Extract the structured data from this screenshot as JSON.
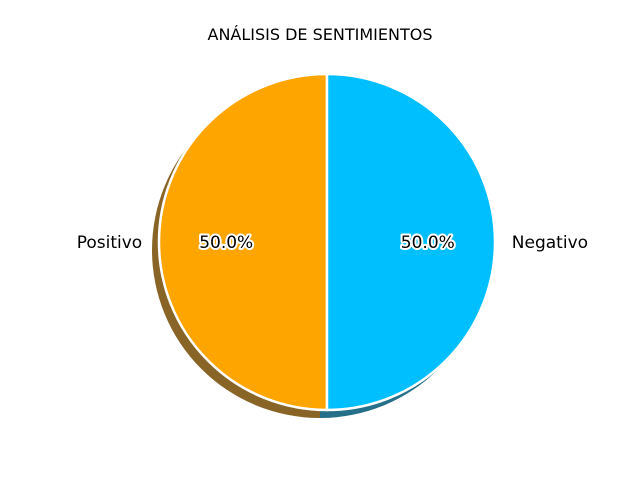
{
  "chart_data": {
    "type": "pie",
    "title": "ANÁLISIS DE SENTIMIENTOS",
    "slices": [
      {
        "label": "Positivo",
        "value": 50.0,
        "pct_label": "50.0%",
        "color": "#ffa500"
      },
      {
        "label": "Negativo",
        "value": 50.0,
        "pct_label": "50.0%",
        "color": "#00bfff"
      }
    ],
    "shadow": true,
    "edge_color": "#ffffff"
  }
}
